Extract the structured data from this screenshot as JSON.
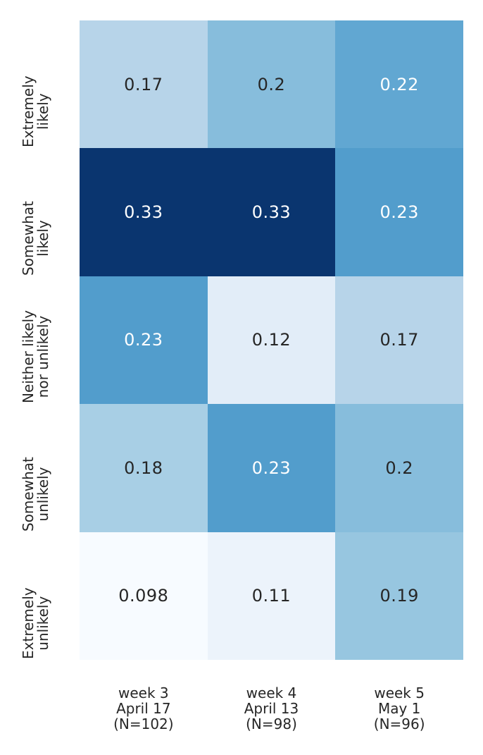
{
  "chart_data": {
    "type": "heatmap",
    "title": "",
    "xlabel": "",
    "ylabel": "",
    "colormap": "Blues",
    "grid": false,
    "legend": false,
    "color_scale": {
      "vmin": 0.098,
      "vmax": 0.33,
      "low_color": "#f7fbff",
      "high_color": "#0a356f"
    },
    "row_labels": [
      "Extremely\nlikely",
      "Somewhat\nlikely",
      "Neither likely\nnor unlikely",
      "Somewhat\nunlikely",
      "Extremely\nunlikely"
    ],
    "col_labels": [
      "week 3\nApril 17\n(N=102)",
      "week 4\nApril 13\n(N=98)",
      "week 5\nMay 1\n(N=96)"
    ],
    "values": [
      [
        0.17,
        0.2,
        0.22
      ],
      [
        0.33,
        0.33,
        0.23
      ],
      [
        0.23,
        0.12,
        0.17
      ],
      [
        0.18,
        0.23,
        0.2
      ],
      [
        0.098,
        0.11,
        0.19
      ]
    ],
    "cells": [
      [
        {
          "label": "0.17",
          "bg": "#b7d4e9",
          "fg": "#262626"
        },
        {
          "label": "0.2",
          "bg": "#87bddc",
          "fg": "#262626"
        },
        {
          "label": "0.22",
          "bg": "#61a7d2",
          "fg": "#ffffff"
        }
      ],
      [
        {
          "label": "0.33",
          "bg": "#0a356f",
          "fg": "#ffffff"
        },
        {
          "label": "0.33",
          "bg": "#0a356f",
          "fg": "#ffffff"
        },
        {
          "label": "0.23",
          "bg": "#529dcc",
          "fg": "#ffffff"
        }
      ],
      [
        {
          "label": "0.23",
          "bg": "#529dcc",
          "fg": "#ffffff"
        },
        {
          "label": "0.12",
          "bg": "#e2edf8",
          "fg": "#262626"
        },
        {
          "label": "0.17",
          "bg": "#b7d4e9",
          "fg": "#262626"
        }
      ],
      [
        {
          "label": "0.18",
          "bg": "#a8cfe5",
          "fg": "#262626"
        },
        {
          "label": "0.23",
          "bg": "#529dcc",
          "fg": "#ffffff"
        },
        {
          "label": "0.2",
          "bg": "#87bddc",
          "fg": "#262626"
        }
      ],
      [
        {
          "label": "0.098",
          "bg": "#f7fbff",
          "fg": "#262626"
        },
        {
          "label": "0.11",
          "bg": "#ecf3fb",
          "fg": "#262626"
        },
        {
          "label": "0.19",
          "bg": "#97c6e0",
          "fg": "#262626"
        }
      ]
    ]
  }
}
